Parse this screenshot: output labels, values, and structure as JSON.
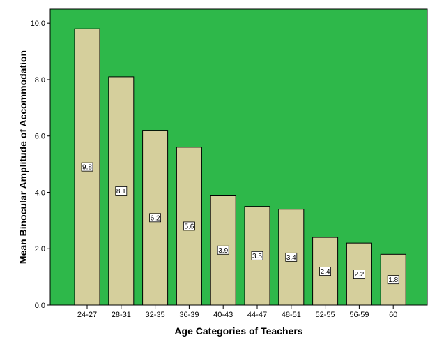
{
  "colors": {
    "plot_background": "#2eb84a",
    "bar_fill": "#d5cf9c",
    "bar_stroke": "#000000",
    "label_box": "#ffffff"
  },
  "chart_data": {
    "type": "bar",
    "title": "",
    "xlabel": "Age Categories of Teachers",
    "ylabel": "Mean Binocular Amplitude of Accommodation",
    "categories": [
      "24-27",
      "28-31",
      "32-35",
      "36-39",
      "40-43",
      "44-47",
      "48-51",
      "52-55",
      "56-59",
      "60"
    ],
    "values": [
      9.8,
      8.1,
      6.2,
      5.6,
      3.9,
      3.5,
      3.4,
      2.4,
      2.2,
      1.8
    ],
    "data_labels": [
      "9.8",
      "8.1",
      "6.2",
      "5.6",
      "3.9",
      "3.5",
      "3.4",
      "2.4",
      "2.2",
      "1.8"
    ],
    "ylim": [
      0,
      10.5
    ],
    "yticks": [
      0,
      2,
      4,
      6,
      8,
      10
    ],
    "ytick_labels": [
      "0.0",
      "2.0",
      "4.0",
      "6.0",
      "8.0",
      "10.0"
    ],
    "grid": false,
    "legend": "none"
  }
}
